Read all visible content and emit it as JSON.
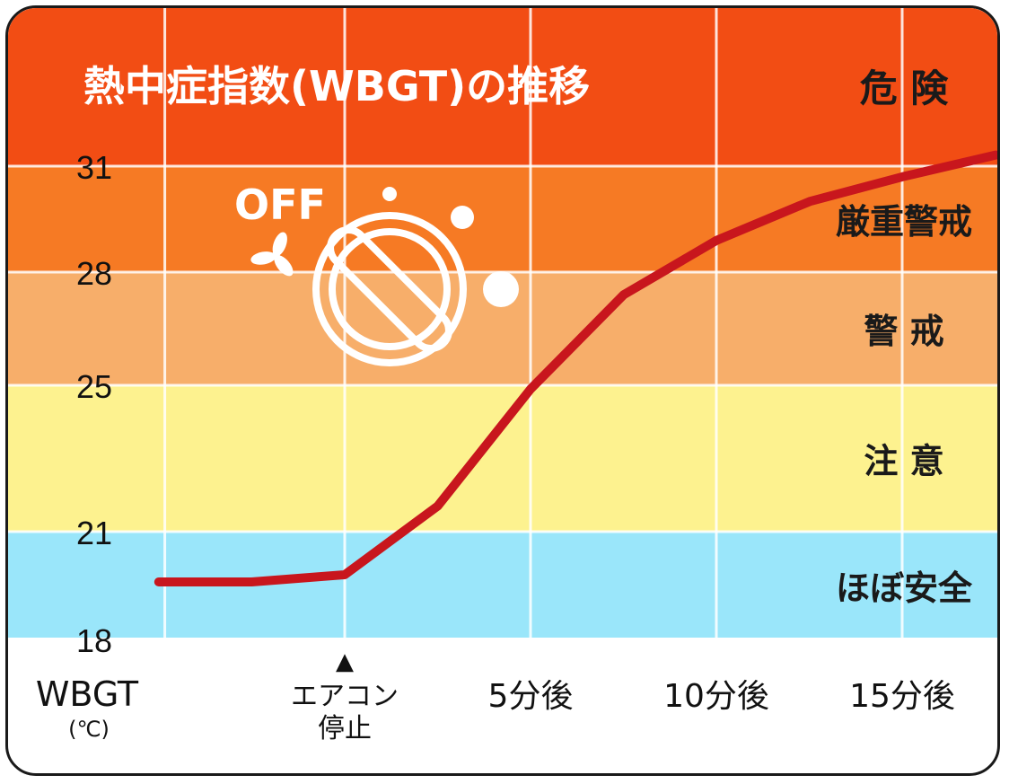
{
  "chart_data": {
    "type": "line",
    "title": "熱中症指数(WBGT)の推移",
    "ylabel": "WBGT",
    "yunit": "(℃)",
    "ylim": [
      18,
      34
    ],
    "y_ticks": [
      "18",
      "21",
      "25",
      "28",
      "31"
    ],
    "x_categories": [
      "",
      "エアコン停止",
      "5分後",
      "10分後",
      "15分後"
    ],
    "x_marker": "▲",
    "series": [
      {
        "values": [
          {
            "x": -2,
            "y": 19.6
          },
          {
            "x": -1,
            "y": 19.6
          },
          {
            "x": 0,
            "y": 19.8
          },
          {
            "x": 1,
            "y": 21.7
          },
          {
            "x": 2,
            "y": 24.9
          },
          {
            "x": 3,
            "y": 27.4
          },
          {
            "x": 4,
            "y": 28.9
          },
          {
            "x": 5,
            "y": 30.0
          },
          {
            "x": 6,
            "y": 30.7
          },
          {
            "x": 7,
            "y": 31.3
          }
        ],
        "color": "#c8161d"
      }
    ],
    "bands": [
      {
        "label": "ほぼ安全",
        "from": 18,
        "to": 21,
        "color": "#9ae6fa"
      },
      {
        "label": "注 意",
        "from": 21,
        "to": 25,
        "color": "#fdf28f"
      },
      {
        "label": "警 戒",
        "from": 25,
        "to": 28,
        "color": "#f7ae6a"
      },
      {
        "label": "厳重警戒",
        "from": 28,
        "to": 31,
        "color": "#f67a24"
      },
      {
        "label": "危 険",
        "from": 31,
        "to": 34,
        "color": "#f24d14"
      }
    ],
    "grid": true
  },
  "decoration": {
    "off_label": "OFF",
    "icon": "aircon-off-icon"
  }
}
